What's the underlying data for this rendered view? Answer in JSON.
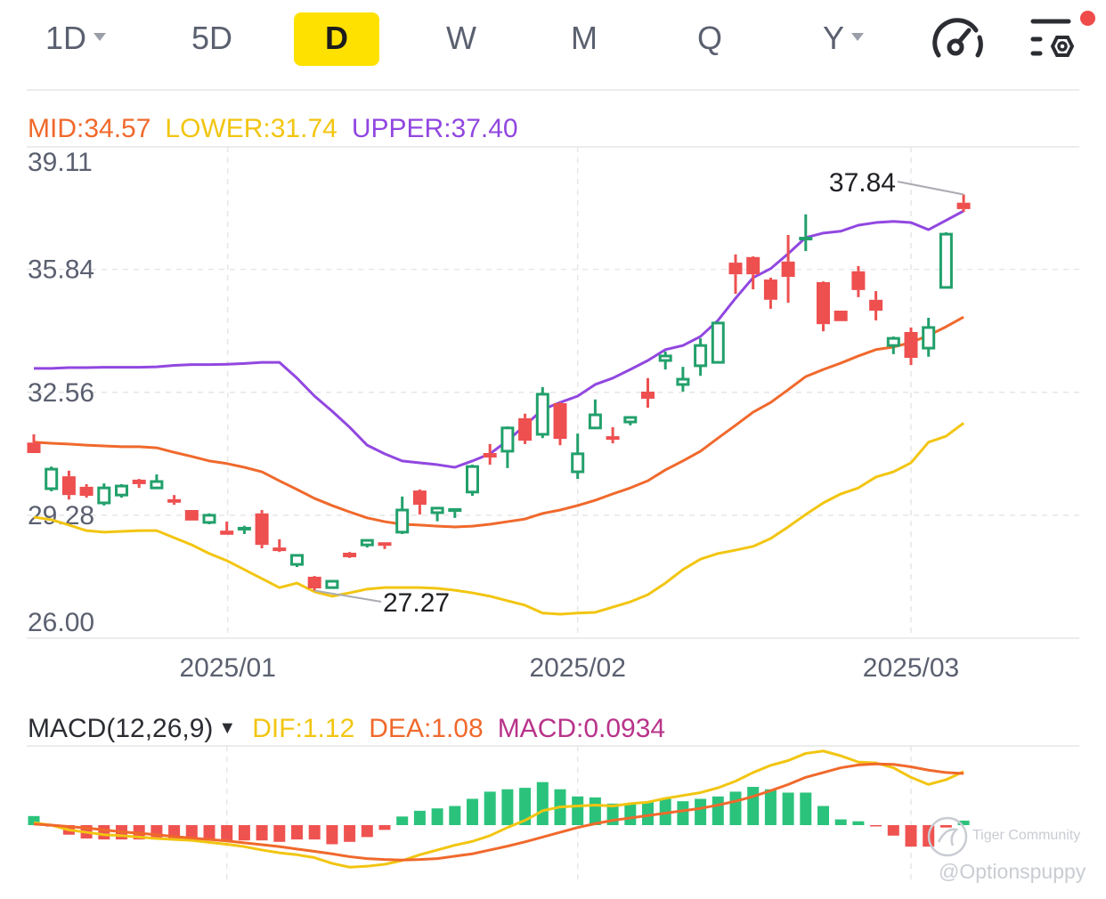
{
  "toolbar": {
    "tabs": [
      {
        "label": "1D",
        "has_dropdown": true
      },
      {
        "label": "5D"
      },
      {
        "label": "D",
        "active": true
      },
      {
        "label": "W"
      },
      {
        "label": "M"
      },
      {
        "label": "Q"
      },
      {
        "label": "Y",
        "has_dropdown": true
      }
    ],
    "icons": [
      "gauge-icon",
      "indicator-settings-icon"
    ],
    "notification_dot_color": "#f04b4b",
    "active_color": "#ffe100"
  },
  "bollinger_legend": {
    "mid": "MID:34.57",
    "lower": "LOWER:31.74",
    "upper": "UPPER:37.40"
  },
  "macd_legend": {
    "name": "MACD(12,26,9)",
    "dif": "DIF:1.12",
    "dea": "DEA:1.08",
    "macd": "MACD:0.0934"
  },
  "watermark": {
    "brand": "Tiger Community",
    "handle": "@Optionspuppy"
  },
  "colors": {
    "up": "#22a06b",
    "down": "#ee4f4f",
    "mid": "#f0692c",
    "lower": "#f2c511",
    "upper": "#9147e0",
    "dif": "#f2c511",
    "dea": "#f0692c",
    "macd_label": "#b8338a"
  },
  "chart_data": [
    {
      "type": "candlestick",
      "y_ticks": [
        "39.11",
        "35.84",
        "32.56",
        "29.28",
        "26.00"
      ],
      "ylim": [
        26.0,
        39.11
      ],
      "x_tick_labels": [
        {
          "date": "2025-01-02",
          "label": "2025/01"
        },
        {
          "date": "2025-02-03",
          "label": "2025/02"
        },
        {
          "date": "2025-03-03",
          "label": "2025/03"
        }
      ],
      "grid": true,
      "annotations": {
        "high": "37.84",
        "low": "27.27"
      },
      "dates": [
        "2024-12-16",
        "2024-12-17",
        "2024-12-18",
        "2024-12-19",
        "2024-12-20",
        "2024-12-23",
        "2024-12-24",
        "2024-12-26",
        "2024-12-27",
        "2024-12-30",
        "2024-12-31",
        "2025-01-02",
        "2025-01-03",
        "2025-01-06",
        "2025-01-07",
        "2025-01-08",
        "2025-01-10",
        "2025-01-13",
        "2025-01-14",
        "2025-01-15",
        "2025-01-16",
        "2025-01-17",
        "2025-01-21",
        "2025-01-22",
        "2025-01-23",
        "2025-01-24",
        "2025-01-27",
        "2025-01-28",
        "2025-01-29",
        "2025-01-30",
        "2025-01-31",
        "2025-02-03",
        "2025-02-04",
        "2025-02-05",
        "2025-02-06",
        "2025-02-07",
        "2025-02-10",
        "2025-02-11",
        "2025-02-12",
        "2025-02-13",
        "2025-02-14",
        "2025-02-18",
        "2025-02-19",
        "2025-02-20",
        "2025-02-21",
        "2025-02-24",
        "2025-02-25",
        "2025-02-26",
        "2025-02-27",
        "2025-02-28",
        "2025-03-03",
        "2025-03-04",
        "2025-03-05",
        "2025-03-06"
      ],
      "ohlc": [
        [
          31.22,
          31.44,
          30.94,
          30.94
        ],
        [
          29.99,
          30.58,
          29.92,
          30.51
        ],
        [
          30.32,
          30.47,
          29.7,
          29.82
        ],
        [
          30.04,
          30.11,
          29.75,
          29.8
        ],
        [
          29.61,
          30.13,
          29.54,
          30.01
        ],
        [
          29.82,
          30.11,
          29.75,
          30.06
        ],
        [
          30.23,
          30.25,
          30.01,
          30.11
        ],
        [
          30.01,
          30.37,
          30.01,
          30.18
        ],
        [
          29.71,
          29.82,
          29.56,
          29.68
        ],
        [
          29.42,
          29.42,
          29.14,
          29.14
        ],
        [
          29.09,
          29.33,
          29.04,
          29.28
        ],
        [
          28.87,
          29.11,
          28.76,
          28.76
        ],
        [
          28.9,
          29.0,
          28.78,
          28.97
        ],
        [
          29.33,
          29.42,
          28.4,
          28.49
        ],
        [
          28.42,
          28.64,
          28.3,
          28.35
        ],
        [
          27.97,
          28.23,
          27.9,
          28.21
        ],
        [
          27.64,
          27.66,
          27.27,
          27.33
        ],
        [
          27.35,
          27.52,
          27.35,
          27.52
        ],
        [
          28.28,
          28.3,
          28.14,
          28.16
        ],
        [
          28.49,
          28.61,
          28.42,
          28.61
        ],
        [
          28.56,
          28.56,
          28.38,
          28.49
        ],
        [
          28.83,
          29.78,
          28.78,
          29.42
        ],
        [
          29.94,
          29.97,
          29.3,
          29.56
        ],
        [
          29.35,
          29.47,
          29.12,
          29.47
        ],
        [
          29.37,
          29.47,
          29.21,
          29.47
        ],
        [
          29.9,
          30.63,
          29.8,
          30.58
        ],
        [
          30.94,
          31.18,
          30.63,
          30.82
        ],
        [
          30.99,
          31.65,
          30.54,
          31.61
        ],
        [
          31.87,
          31.99,
          31.18,
          31.27
        ],
        [
          31.44,
          32.7,
          31.34,
          32.51
        ],
        [
          32.27,
          32.29,
          31.15,
          31.32
        ],
        [
          30.44,
          31.46,
          30.25,
          30.92
        ],
        [
          31.61,
          32.37,
          31.58,
          31.96
        ],
        [
          31.39,
          31.63,
          31.2,
          31.3
        ],
        [
          31.77,
          31.89,
          31.68,
          31.89
        ],
        [
          32.58,
          32.94,
          32.15,
          32.39
        ],
        [
          33.41,
          33.65,
          33.17,
          33.53
        ],
        [
          32.77,
          33.24,
          32.58,
          32.91
        ],
        [
          33.27,
          34.0,
          33.0,
          33.81
        ],
        [
          33.36,
          34.41,
          33.36,
          34.41
        ],
        [
          36.02,
          36.24,
          35.19,
          35.71
        ],
        [
          36.17,
          36.19,
          35.31,
          35.71
        ],
        [
          35.57,
          35.62,
          34.79,
          35.03
        ],
        [
          36.05,
          36.76,
          34.95,
          35.64
        ],
        [
          36.62,
          37.31,
          36.33,
          36.71
        ],
        [
          35.5,
          35.52,
          34.19,
          34.38
        ],
        [
          34.74,
          34.74,
          34.46,
          34.46
        ],
        [
          35.79,
          35.93,
          35.1,
          35.29
        ],
        [
          35.03,
          35.26,
          34.48,
          34.74
        ],
        [
          33.81,
          34.05,
          33.58,
          34.0
        ],
        [
          34.17,
          34.29,
          33.29,
          33.48
        ],
        [
          33.74,
          34.55,
          33.51,
          34.29
        ],
        [
          35.36,
          36.83,
          35.36,
          36.78
        ],
        [
          37.62,
          37.84,
          37.38,
          37.45
        ]
      ],
      "series": [
        {
          "name": "MID",
          "values": [
            31.23,
            31.2,
            31.18,
            31.15,
            31.13,
            31.11,
            31.11,
            31.08,
            30.96,
            30.85,
            30.73,
            30.66,
            30.56,
            30.44,
            30.2,
            29.97,
            29.73,
            29.54,
            29.37,
            29.21,
            29.11,
            29.04,
            29.02,
            28.99,
            28.97,
            28.99,
            29.04,
            29.11,
            29.18,
            29.33,
            29.42,
            29.54,
            29.68,
            29.85,
            30.01,
            30.2,
            30.49,
            30.73,
            30.99,
            31.34,
            31.68,
            32.03,
            32.29,
            32.63,
            32.98,
            33.17,
            33.34,
            33.53,
            33.7,
            33.77,
            33.89,
            34.08,
            34.31,
            34.57
          ]
        },
        {
          "name": "LOWER",
          "values": [
            29.23,
            29.16,
            29.02,
            28.87,
            28.83,
            28.85,
            28.87,
            28.87,
            28.68,
            28.49,
            28.26,
            28.07,
            27.83,
            27.59,
            27.35,
            27.47,
            27.24,
            27.12,
            27.21,
            27.31,
            27.35,
            27.35,
            27.35,
            27.33,
            27.28,
            27.21,
            27.12,
            27.0,
            26.88,
            26.67,
            26.64,
            26.67,
            26.69,
            26.83,
            26.97,
            27.16,
            27.47,
            27.83,
            28.11,
            28.26,
            28.35,
            28.45,
            28.66,
            28.97,
            29.3,
            29.61,
            29.85,
            30.01,
            30.3,
            30.44,
            30.68,
            31.23,
            31.39,
            31.74
          ]
        },
        {
          "name": "UPPER",
          "values": [
            33.2,
            33.2,
            33.22,
            33.22,
            33.23,
            33.23,
            33.23,
            33.24,
            33.28,
            33.3,
            33.3,
            33.31,
            33.33,
            33.36,
            33.36,
            32.94,
            32.46,
            32.06,
            31.63,
            31.15,
            30.92,
            30.73,
            30.68,
            30.63,
            30.56,
            30.73,
            30.92,
            31.27,
            31.68,
            32.1,
            32.29,
            32.46,
            32.77,
            32.94,
            33.17,
            33.41,
            33.7,
            33.81,
            34.05,
            34.48,
            35.07,
            35.62,
            35.86,
            36.26,
            36.69,
            36.81,
            36.86,
            37.02,
            37.09,
            37.12,
            37.09,
            36.9,
            37.15,
            37.4
          ]
        }
      ]
    },
    {
      "type": "bar+line",
      "title": "MACD(12,26,9)",
      "ylim": [
        -1.08,
        1.62
      ],
      "series": [
        {
          "name": "MACD",
          "type": "bar",
          "values": [
            0.19,
            -0.03,
            -0.2,
            -0.28,
            -0.3,
            -0.3,
            -0.3,
            -0.3,
            -0.3,
            -0.3,
            -0.3,
            -0.32,
            -0.32,
            -0.32,
            -0.35,
            -0.3,
            -0.3,
            -0.4,
            -0.35,
            -0.25,
            -0.1,
            0.18,
            0.3,
            0.35,
            0.4,
            0.55,
            0.7,
            0.75,
            0.78,
            0.9,
            0.75,
            0.6,
            0.58,
            0.45,
            0.45,
            0.48,
            0.55,
            0.5,
            0.55,
            0.6,
            0.7,
            0.8,
            0.75,
            0.68,
            0.68,
            0.4,
            0.12,
            0.08,
            -0.02,
            -0.22,
            -0.45,
            -0.45,
            -0.05,
            0.0934
          ]
        },
        {
          "name": "DIF",
          "type": "line",
          "values": [
            0.05,
            0.0,
            -0.1,
            -0.15,
            -0.2,
            -0.22,
            -0.25,
            -0.28,
            -0.3,
            -0.32,
            -0.36,
            -0.4,
            -0.45,
            -0.52,
            -0.58,
            -0.62,
            -0.68,
            -0.8,
            -0.88,
            -0.86,
            -0.82,
            -0.74,
            -0.62,
            -0.52,
            -0.42,
            -0.34,
            -0.22,
            -0.05,
            0.1,
            0.3,
            0.38,
            0.4,
            0.42,
            0.4,
            0.45,
            0.48,
            0.56,
            0.62,
            0.68,
            0.78,
            0.92,
            1.1,
            1.25,
            1.35,
            1.5,
            1.55,
            1.45,
            1.32,
            1.3,
            1.2,
            1.0,
            0.85,
            0.95,
            1.12
          ]
        },
        {
          "name": "DEA",
          "type": "line",
          "values": [
            0.02,
            0.0,
            -0.03,
            -0.06,
            -0.1,
            -0.14,
            -0.17,
            -0.2,
            -0.24,
            -0.27,
            -0.3,
            -0.33,
            -0.37,
            -0.41,
            -0.45,
            -0.5,
            -0.55,
            -0.6,
            -0.66,
            -0.7,
            -0.72,
            -0.73,
            -0.72,
            -0.7,
            -0.65,
            -0.6,
            -0.52,
            -0.44,
            -0.35,
            -0.25,
            -0.15,
            -0.05,
            0.03,
            0.1,
            0.15,
            0.2,
            0.25,
            0.3,
            0.35,
            0.42,
            0.5,
            0.6,
            0.72,
            0.85,
            1.0,
            1.1,
            1.2,
            1.26,
            1.28,
            1.27,
            1.22,
            1.15,
            1.1,
            1.08
          ]
        }
      ]
    }
  ]
}
